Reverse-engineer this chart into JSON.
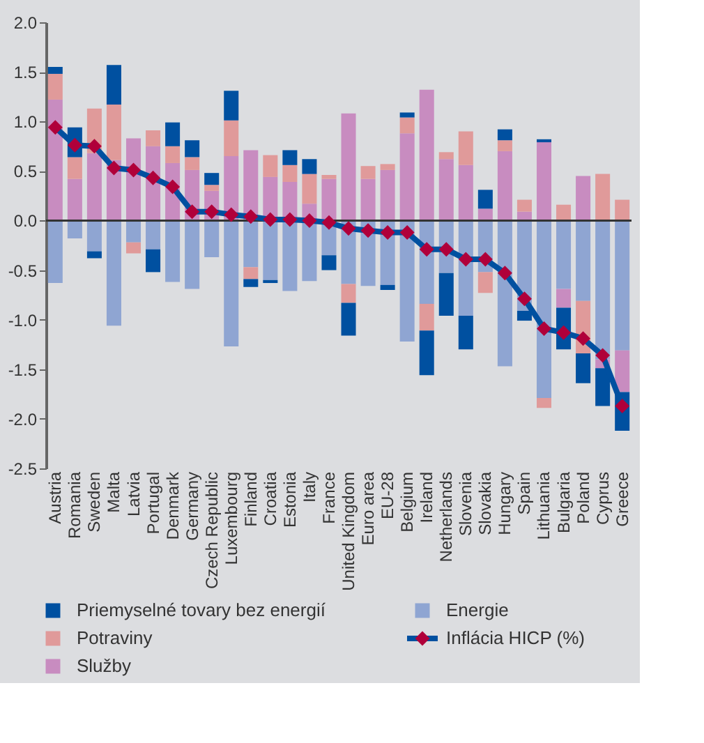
{
  "chart_data": {
    "type": "bar",
    "stacked": true,
    "legend": "bottom",
    "categories": [
      "Austria",
      "Romania",
      "Sweden",
      "Malta",
      "Latvia",
      "Portugal",
      "Denmark",
      "Germany",
      "Czech Republic",
      "Luxembourg",
      "Finland",
      "Croatia",
      "Estonia",
      "Italy",
      "France",
      "United Kingdom",
      "Euro area",
      "EU-28",
      "Belgium",
      "Ireland",
      "Netherlands",
      "Slovenia",
      "Slovakia",
      "Hungary",
      "Spain",
      "Lithuania",
      "Bulgaria",
      "Poland",
      "Cyprus",
      "Greece"
    ],
    "ylim": [
      -2.5,
      2.0
    ],
    "yticks": [
      {
        "value": 2,
        "label": "2.0"
      },
      1.5,
      {
        "value": 1,
        "label": "1.0"
      },
      0.5,
      {
        "value": 0,
        "label": "0.0"
      },
      -0.5,
      {
        "value": -1,
        "label": "-1.0"
      },
      -1.5,
      {
        "value": -2,
        "label": "-2.0"
      },
      -2.5
    ],
    "ref_lines": [
      {
        "axis": "y",
        "value": 0,
        "color": "#333333"
      }
    ],
    "series": [
      {
        "name": "Energie",
        "color": "#8fa5d2",
        "values": [
          -0.63,
          -0.18,
          -0.31,
          -1.06,
          -0.22,
          -0.29,
          -0.62,
          -0.69,
          -0.37,
          -1.27,
          -0.47,
          -0.6,
          -0.71,
          -0.61,
          -0.35,
          -0.64,
          -0.66,
          -0.65,
          -1.22,
          -0.84,
          -0.53,
          -0.96,
          -0.52,
          -1.47,
          -0.91,
          -1.79,
          -0.69,
          -0.81,
          -1.4,
          -1.31
        ]
      },
      {
        "name": "Služby",
        "color": "#c88cc0",
        "values": [
          1.22,
          0.42,
          0.68,
          0.61,
          0.83,
          0.75,
          0.58,
          0.51,
          0.3,
          0.65,
          0.71,
          0.44,
          0.39,
          0.17,
          0.42,
          1.08,
          0.42,
          0.51,
          0.88,
          1.32,
          0.62,
          0.56,
          0.12,
          0.7,
          0.09,
          0.79,
          -0.19,
          0.45,
          -0.09,
          -0.42
        ]
      },
      {
        "name": "Potraviny",
        "color": "#e09a9a",
        "values": [
          0.26,
          0.22,
          0.45,
          0.56,
          -0.11,
          0.16,
          0.17,
          0.13,
          0.06,
          0.36,
          -0.12,
          0.22,
          0.17,
          0.3,
          0.04,
          -0.19,
          0.13,
          0.06,
          0.16,
          -0.27,
          0.07,
          0.34,
          -0.21,
          0.11,
          0.12,
          -0.1,
          0.16,
          -0.53,
          0.47,
          0.21
        ]
      },
      {
        "name": "Priemyselné tovary bez energií",
        "color": "#0050a0",
        "values": [
          0.07,
          0.3,
          -0.07,
          0.4,
          null,
          -0.23,
          0.24,
          0.17,
          0.12,
          0.3,
          -0.08,
          -0.03,
          0.15,
          0.15,
          -0.15,
          -0.33,
          null,
          -0.05,
          0.05,
          -0.45,
          -0.43,
          -0.34,
          0.19,
          0.11,
          -0.1,
          0.03,
          -0.42,
          -0.3,
          -0.38,
          -0.39
        ]
      },
      {
        "name": "Inflácia HICP (%)",
        "type": "line",
        "marker": "diamond",
        "line_style": "solid",
        "color": "#0050a0",
        "colors": [
          "#b0003a",
          "#b0003a",
          "#b0003a",
          "#b0003a",
          "#b0003a",
          "#b0003a",
          "#b0003a",
          "#b0003a",
          "#b0003a",
          "#b0003a",
          "#b0003a",
          "#b0003a",
          "#b0003a",
          "#b0003a",
          "#b0003a",
          "#b0003a",
          "#b0003a",
          "#b0003a",
          "#b0003a",
          "#b0003a",
          "#b0003a",
          "#b0003a",
          "#b0003a",
          "#b0003a",
          "#b0003a",
          "#b0003a",
          "#b0003a",
          "#b0003a",
          "#b0003a",
          "#b0003a"
        ],
        "values": [
          0.94,
          0.76,
          0.75,
          0.53,
          0.51,
          0.43,
          0.34,
          0.09,
          0.09,
          0.06,
          0.04,
          0.01,
          0.01,
          0.0,
          -0.02,
          -0.08,
          -0.1,
          -0.12,
          -0.12,
          -0.29,
          -0.29,
          -0.39,
          -0.39,
          -0.53,
          -0.79,
          -1.09,
          -1.13,
          -1.19,
          -1.36,
          -1.87
        ]
      }
    ]
  }
}
